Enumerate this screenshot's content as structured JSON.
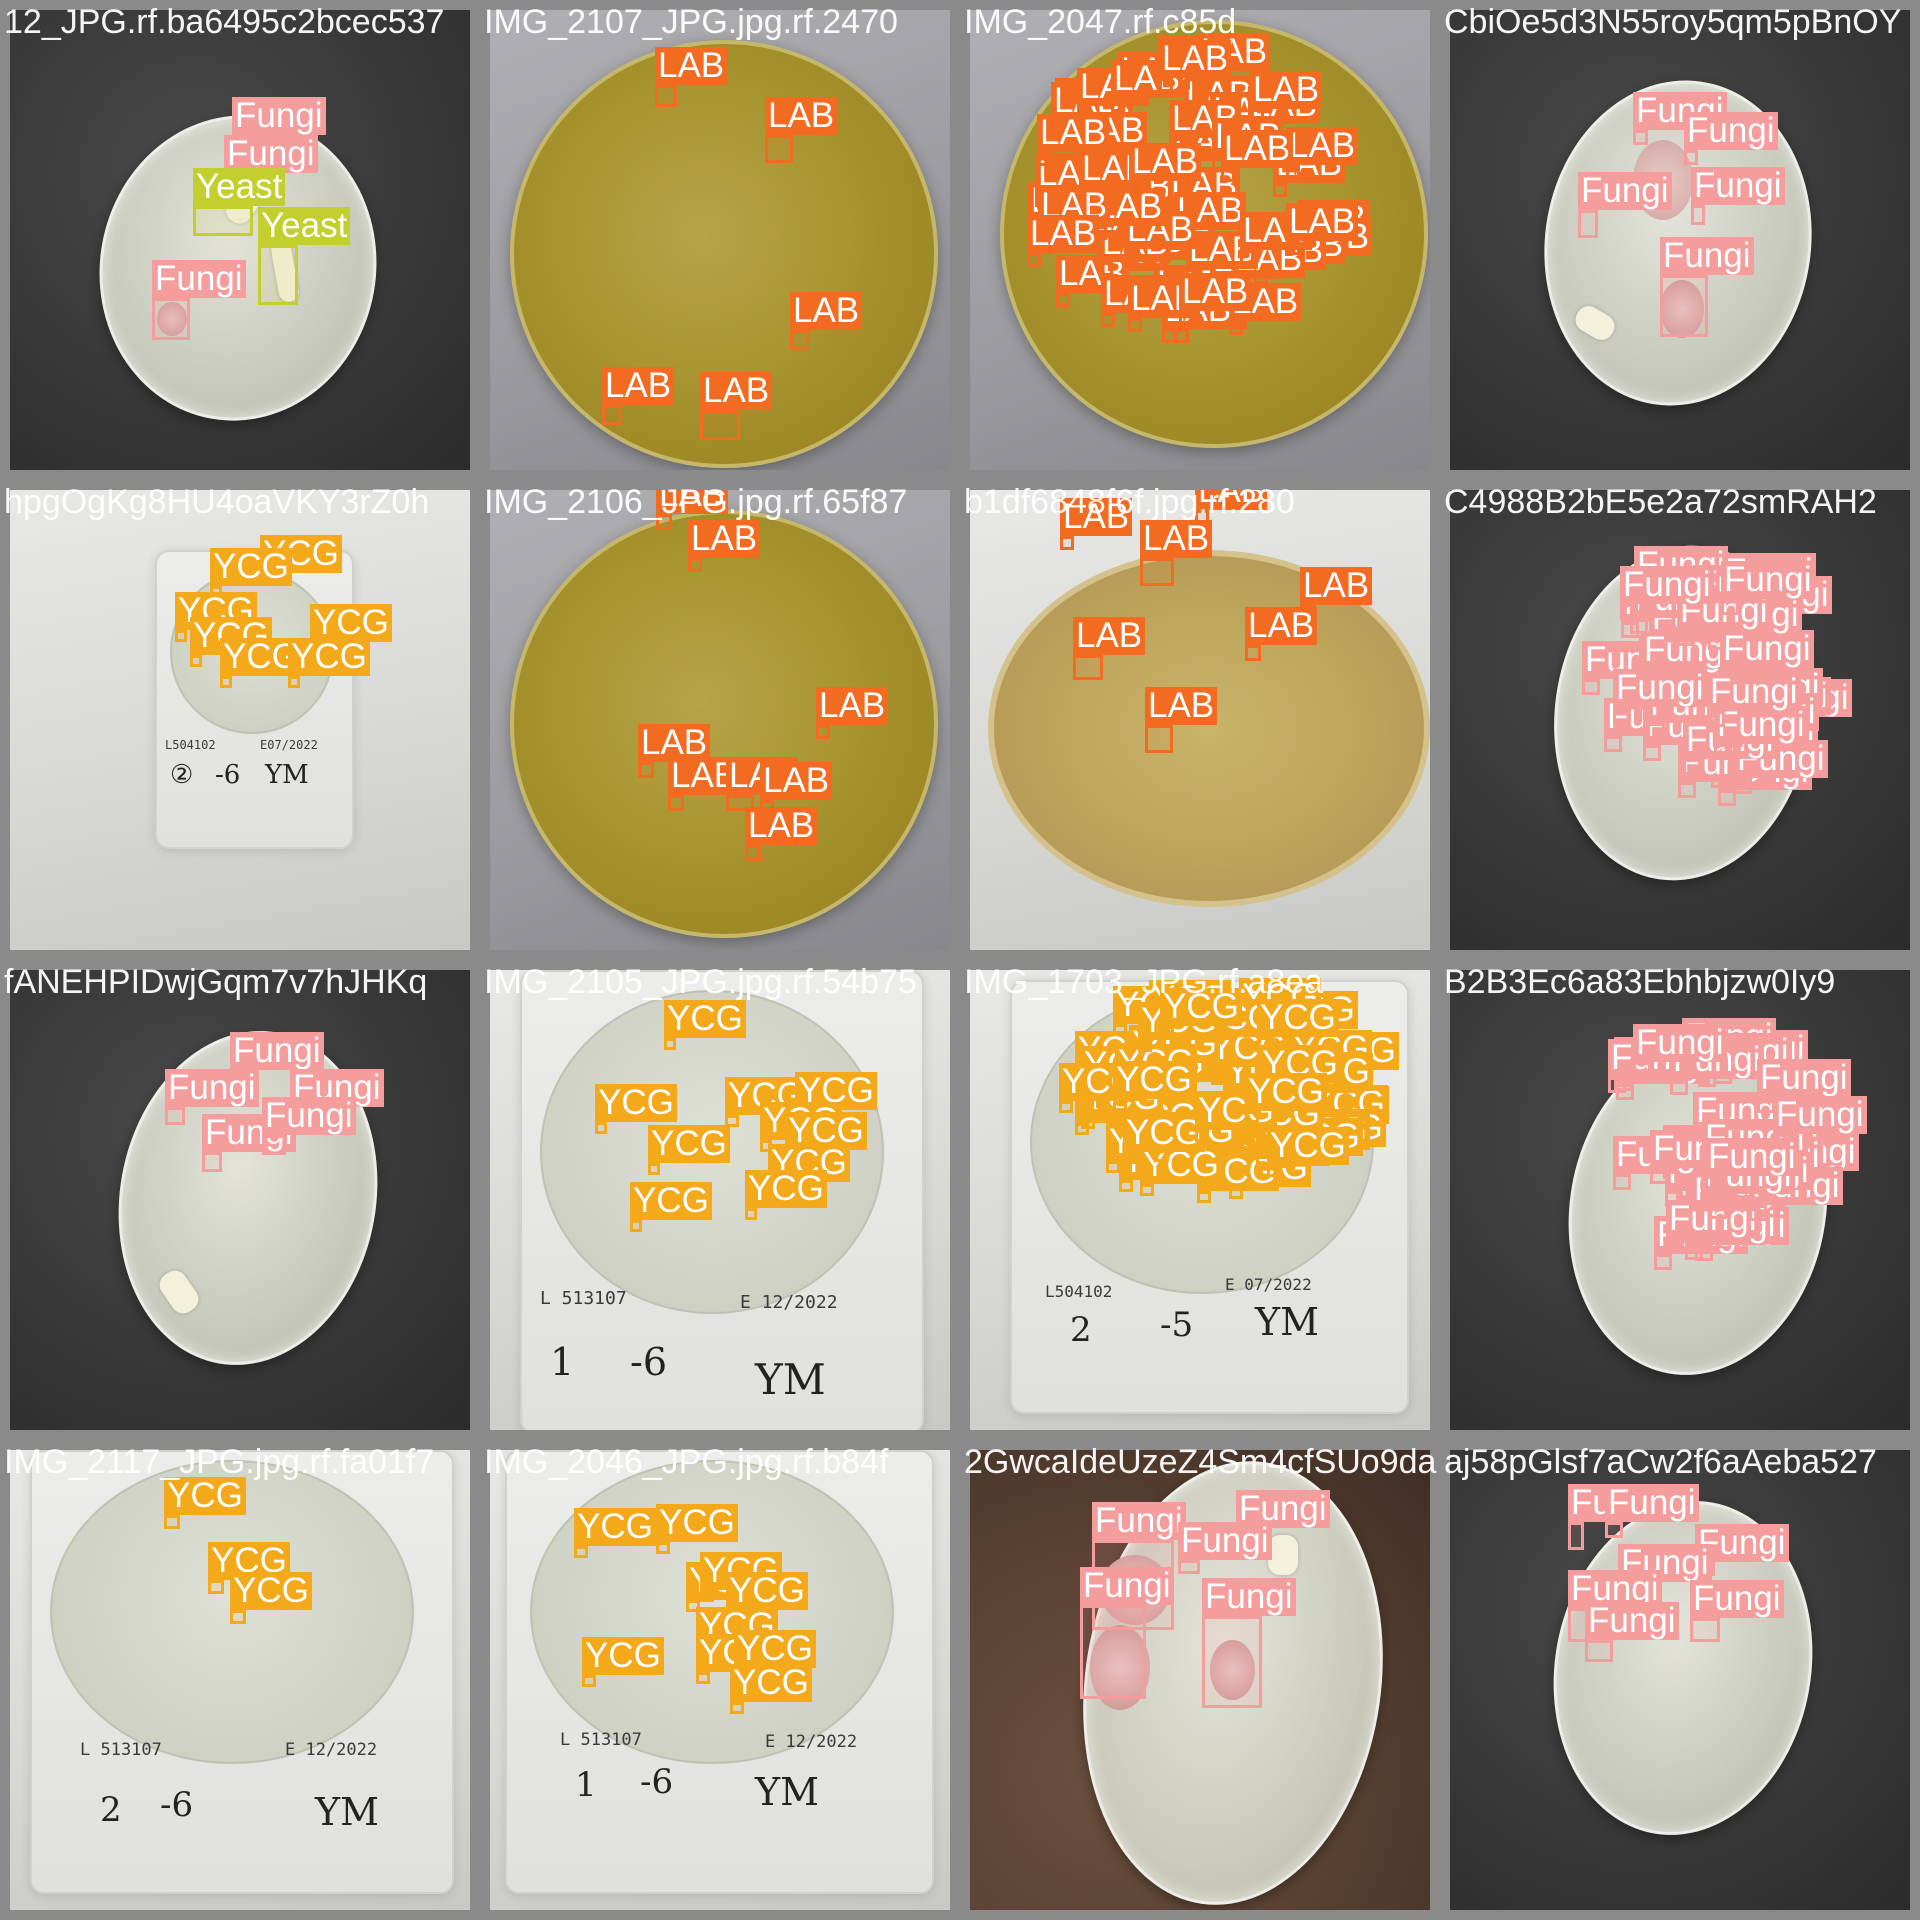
{
  "image": {
    "tiles": [
      {
        "filename": "12_JPG.rf.ba6495c2bcec537",
        "background": "dark",
        "dish": "clear",
        "detections": [
          {
            "cls": "fungi",
            "label": "Fungi"
          },
          {
            "cls": "fungi",
            "label": "Fungi"
          },
          {
            "cls": "yeast",
            "label": "Yeast"
          },
          {
            "cls": "yeast",
            "label": "Yeast"
          },
          {
            "cls": "fungi",
            "label": "Fungi"
          }
        ]
      },
      {
        "filename": "IMG_2107_JPG.jpg.rf.2470",
        "background": "gray",
        "dish": "agar",
        "detections": [
          {
            "cls": "lab",
            "label": "LAB"
          },
          {
            "cls": "lab",
            "label": "LAB"
          },
          {
            "cls": "lab",
            "label": "LAB"
          },
          {
            "cls": "lab",
            "label": "LAB"
          },
          {
            "cls": "lab",
            "label": "LAB"
          }
        ]
      },
      {
        "filename": "IMG_2047.rf.c85d",
        "background": "gray",
        "dish": "agar-dense",
        "detections": []
      },
      {
        "filename": "CbiOe5d3N55roy5qm5pBnOY",
        "background": "dark",
        "dish": "clear",
        "detections": [
          {
            "cls": "fungi",
            "label": "Fungi"
          },
          {
            "cls": "fungi",
            "label": "Fungi"
          },
          {
            "cls": "fungi",
            "label": "Fungi"
          },
          {
            "cls": "fungi",
            "label": "Fungi"
          },
          {
            "cls": "fungi",
            "label": "Fungi"
          }
        ]
      },
      {
        "filename": "hpgOgKg8HU4oaVKY3rZ0h",
        "background": "white",
        "dish": "film",
        "film": {
          "lot": "L504102",
          "exp": "E07/2022",
          "hand1": "②",
          "hand2": "-6",
          "hand3": "YM"
        },
        "detections": [
          {
            "cls": "ycg",
            "label": "YCG"
          },
          {
            "cls": "ycg",
            "label": "YCG"
          },
          {
            "cls": "ycg",
            "label": "YCG"
          },
          {
            "cls": "ycg",
            "label": "YCG"
          },
          {
            "cls": "ycg",
            "label": "YCG"
          },
          {
            "cls": "ycg",
            "label": "YCG"
          },
          {
            "cls": "ycg",
            "label": "YCG"
          }
        ]
      },
      {
        "filename": "IMG_2106_JPG.jpg.rf.65f87",
        "background": "gray",
        "dish": "agar",
        "detections": [
          {
            "cls": "lab",
            "label": "LAB"
          },
          {
            "cls": "lab",
            "label": "LAB"
          },
          {
            "cls": "lab",
            "label": "LAB"
          },
          {
            "cls": "lab",
            "label": "LAB"
          },
          {
            "cls": "lab",
            "label": "LAB"
          },
          {
            "cls": "lab",
            "label": "LAB"
          },
          {
            "cls": "lab",
            "label": "LAB"
          },
          {
            "cls": "lab",
            "label": "LAB"
          }
        ]
      },
      {
        "filename": "b1df6848f6f.jpg.rf.280",
        "background": "white",
        "dish": "agar-light",
        "detections": [
          {
            "cls": "lab",
            "label": "LAB"
          },
          {
            "cls": "lab",
            "label": "LAB"
          },
          {
            "cls": "lab",
            "label": "LAB"
          },
          {
            "cls": "lab",
            "label": "LAB"
          },
          {
            "cls": "lab",
            "label": "LAB"
          },
          {
            "cls": "lab",
            "label": "LAB"
          },
          {
            "cls": "lab",
            "label": "LAB"
          }
        ]
      },
      {
        "filename": "C4988B2bE5e2a72smRAH2",
        "background": "dark",
        "dish": "clear",
        "detections": []
      },
      {
        "filename": "fANEHPIDwjGqm7v7hJHKq",
        "background": "dark",
        "dish": "clear",
        "detections": [
          {
            "cls": "fungi",
            "label": "Fungi"
          },
          {
            "cls": "fungi",
            "label": "Fungi"
          },
          {
            "cls": "fungi",
            "label": "Fungi"
          },
          {
            "cls": "fungi",
            "label": "Fungi"
          },
          {
            "cls": "fungi",
            "label": "Fungi"
          }
        ]
      },
      {
        "filename": "IMG_2105_JPG.jpg.rf.54b75",
        "background": "white",
        "dish": "film",
        "film": {
          "lot": "L 513107",
          "exp": "E 12/2022",
          "hand1": "1",
          "hand2": "-6",
          "hand3": "YM"
        },
        "detections": [
          {
            "cls": "ycg",
            "label": "YCG"
          },
          {
            "cls": "ycg",
            "label": "YCG"
          },
          {
            "cls": "ycg",
            "label": "YCG"
          },
          {
            "cls": "ycg",
            "label": "YCG"
          },
          {
            "cls": "ycg",
            "label": "YCG"
          },
          {
            "cls": "ycg",
            "label": "YCG"
          },
          {
            "cls": "ycg",
            "label": "YCG"
          },
          {
            "cls": "ycg",
            "label": "YCG"
          },
          {
            "cls": "ycg",
            "label": "YCG"
          },
          {
            "cls": "ycg",
            "label": "YCG"
          }
        ]
      },
      {
        "filename": "IMG_1703_JPG.rf.a8ea",
        "background": "white",
        "dish": "film-dense",
        "film": {
          "lot": "L504102",
          "exp": "E 07/2022",
          "hand1": "2",
          "hand2": "-5",
          "hand3": "YM"
        },
        "detections": []
      },
      {
        "filename": "B2B3Ec6a83Ebhbjzw0Iy9",
        "background": "dark",
        "dish": "clear",
        "detections": []
      },
      {
        "filename": "IMG_2117_JPG.jpg.rf.fa01f7",
        "background": "white",
        "dish": "film",
        "film": {
          "lot": "L 513107",
          "exp": "E 12/2022",
          "hand1": "2",
          "hand2": "-6",
          "hand3": "YM"
        },
        "detections": [
          {
            "cls": "ycg",
            "label": "YCG"
          },
          {
            "cls": "ycg",
            "label": "YCG"
          },
          {
            "cls": "ycg",
            "label": "YCG"
          }
        ]
      },
      {
        "filename": "IMG_2046_JPG.jpg.rf.b84f",
        "background": "white",
        "dish": "film",
        "film": {
          "lot": "L 513107",
          "exp": "E 12/2022",
          "hand1": "1",
          "hand2": "-6",
          "hand3": "YM"
        },
        "detections": [
          {
            "cls": "ycg",
            "label": "YCG"
          },
          {
            "cls": "ycg",
            "label": "YCG"
          },
          {
            "cls": "ycg",
            "label": "YCG"
          },
          {
            "cls": "ycg",
            "label": "YCG"
          },
          {
            "cls": "ycg",
            "label": "YCG"
          },
          {
            "cls": "ycg",
            "label": "YCG"
          },
          {
            "cls": "ycg",
            "label": "YCG"
          },
          {
            "cls": "ycg",
            "label": "YCG"
          },
          {
            "cls": "ycg",
            "label": "YCG"
          },
          {
            "cls": "ycg",
            "label": "YCG"
          }
        ]
      },
      {
        "filename": "2GwcaIdeUzeZ4Sm4cfSUo9da",
        "background": "brown",
        "dish": "clear",
        "detections": [
          {
            "cls": "fungi",
            "label": "Fungi"
          },
          {
            "cls": "fungi",
            "label": "Fungi"
          },
          {
            "cls": "fungi",
            "label": "Fungi"
          },
          {
            "cls": "fungi",
            "label": "Fungi"
          },
          {
            "cls": "fungi",
            "label": "Fungi"
          }
        ]
      },
      {
        "filename": "aj58pGlsf7aCw2f6aAeba527",
        "background": "dark",
        "dish": "clear",
        "detections": [
          {
            "cls": "fungi",
            "label": "Fungi"
          },
          {
            "cls": "fungi",
            "label": "Fungi"
          },
          {
            "cls": "fungi",
            "label": "Fungi"
          },
          {
            "cls": "fungi",
            "label": "Fungi"
          },
          {
            "cls": "fungi",
            "label": "Fungi"
          },
          {
            "cls": "fungi",
            "label": "Fungi"
          },
          {
            "cls": "fungi",
            "label": "Fungi"
          }
        ]
      }
    ],
    "class_colors": {
      "lab": "#f26b21",
      "ycg": "#f4a91a",
      "fungi": "#f59d9d",
      "yeast": "#c3cf2c"
    }
  }
}
